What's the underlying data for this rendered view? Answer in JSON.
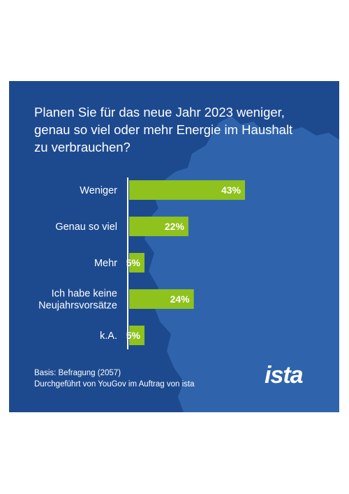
{
  "title_lines": [
    "Planen Sie für das neue Jahr 2023 weniger,",
    "genau so viel oder mehr Energie im Haushalt",
    "zu verbrauchen?"
  ],
  "chart_data": {
    "type": "bar",
    "orientation": "horizontal",
    "categories": [
      [
        "Weniger"
      ],
      [
        "Genau so viel"
      ],
      [
        "Mehr"
      ],
      [
        "Ich habe keine",
        "Neujahrsvorsätze"
      ],
      [
        "k.A."
      ]
    ],
    "values": [
      43,
      22,
      5,
      24,
      5
    ],
    "value_labels": [
      "43%",
      "22%",
      "5%",
      "24%",
      "5%"
    ],
    "unit": "%",
    "xlim": [
      0,
      43
    ],
    "bar_color": "#8fc21c"
  },
  "footnote": {
    "line1": "Basis: Befragung  (2057)",
    "line2": "Durchgeführt von YouGov im Auftrag von ista"
  },
  "logo_text": "ista",
  "colors": {
    "background": "#1d4a8f",
    "map": "#2f64ad",
    "text": "#ffffff"
  }
}
